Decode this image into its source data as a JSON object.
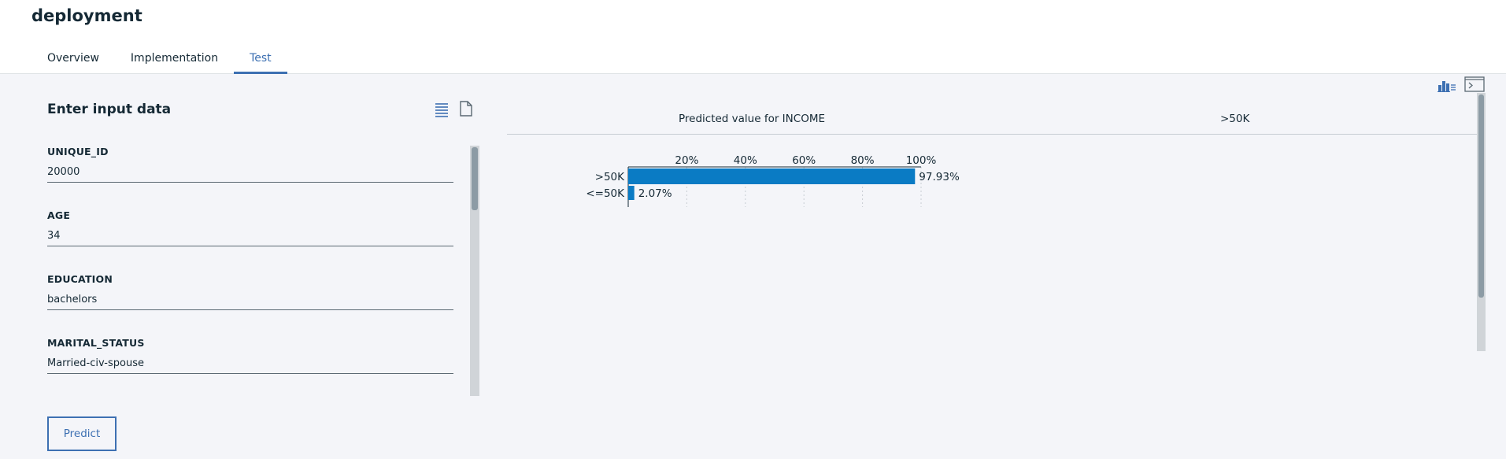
{
  "header": {
    "title": "deployment",
    "tabs": [
      {
        "label": "Overview",
        "active": false
      },
      {
        "label": "Implementation",
        "active": false
      },
      {
        "label": "Test",
        "active": true
      }
    ]
  },
  "input_panel": {
    "title": "Enter input data",
    "fields": [
      {
        "label": "UNIQUE_ID",
        "value": "20000"
      },
      {
        "label": "AGE",
        "value": "34"
      },
      {
        "label": "EDUCATION",
        "value": "bachelors"
      },
      {
        "label": "MARITAL_STATUS",
        "value": "Married-civ-spouse"
      }
    ],
    "predict_label": "Predict"
  },
  "result_panel": {
    "label": "Predicted value for INCOME",
    "value": ">50K"
  },
  "colors": {
    "accent": "#3d70b2",
    "bar": "#0a7bc4"
  },
  "chart_data": {
    "type": "bar",
    "orientation": "horizontal",
    "categories": [
      ">50K",
      "<=50K"
    ],
    "values": [
      97.93,
      2.07
    ],
    "data_labels": [
      "97.93%",
      "2.07%"
    ],
    "xlim": [
      0,
      100
    ],
    "xticks": [
      20,
      40,
      60,
      80,
      100
    ],
    "xtick_labels": [
      "20%",
      "40%",
      "60%",
      "80%",
      "100%"
    ],
    "title": "",
    "xlabel": "",
    "ylabel": ""
  }
}
